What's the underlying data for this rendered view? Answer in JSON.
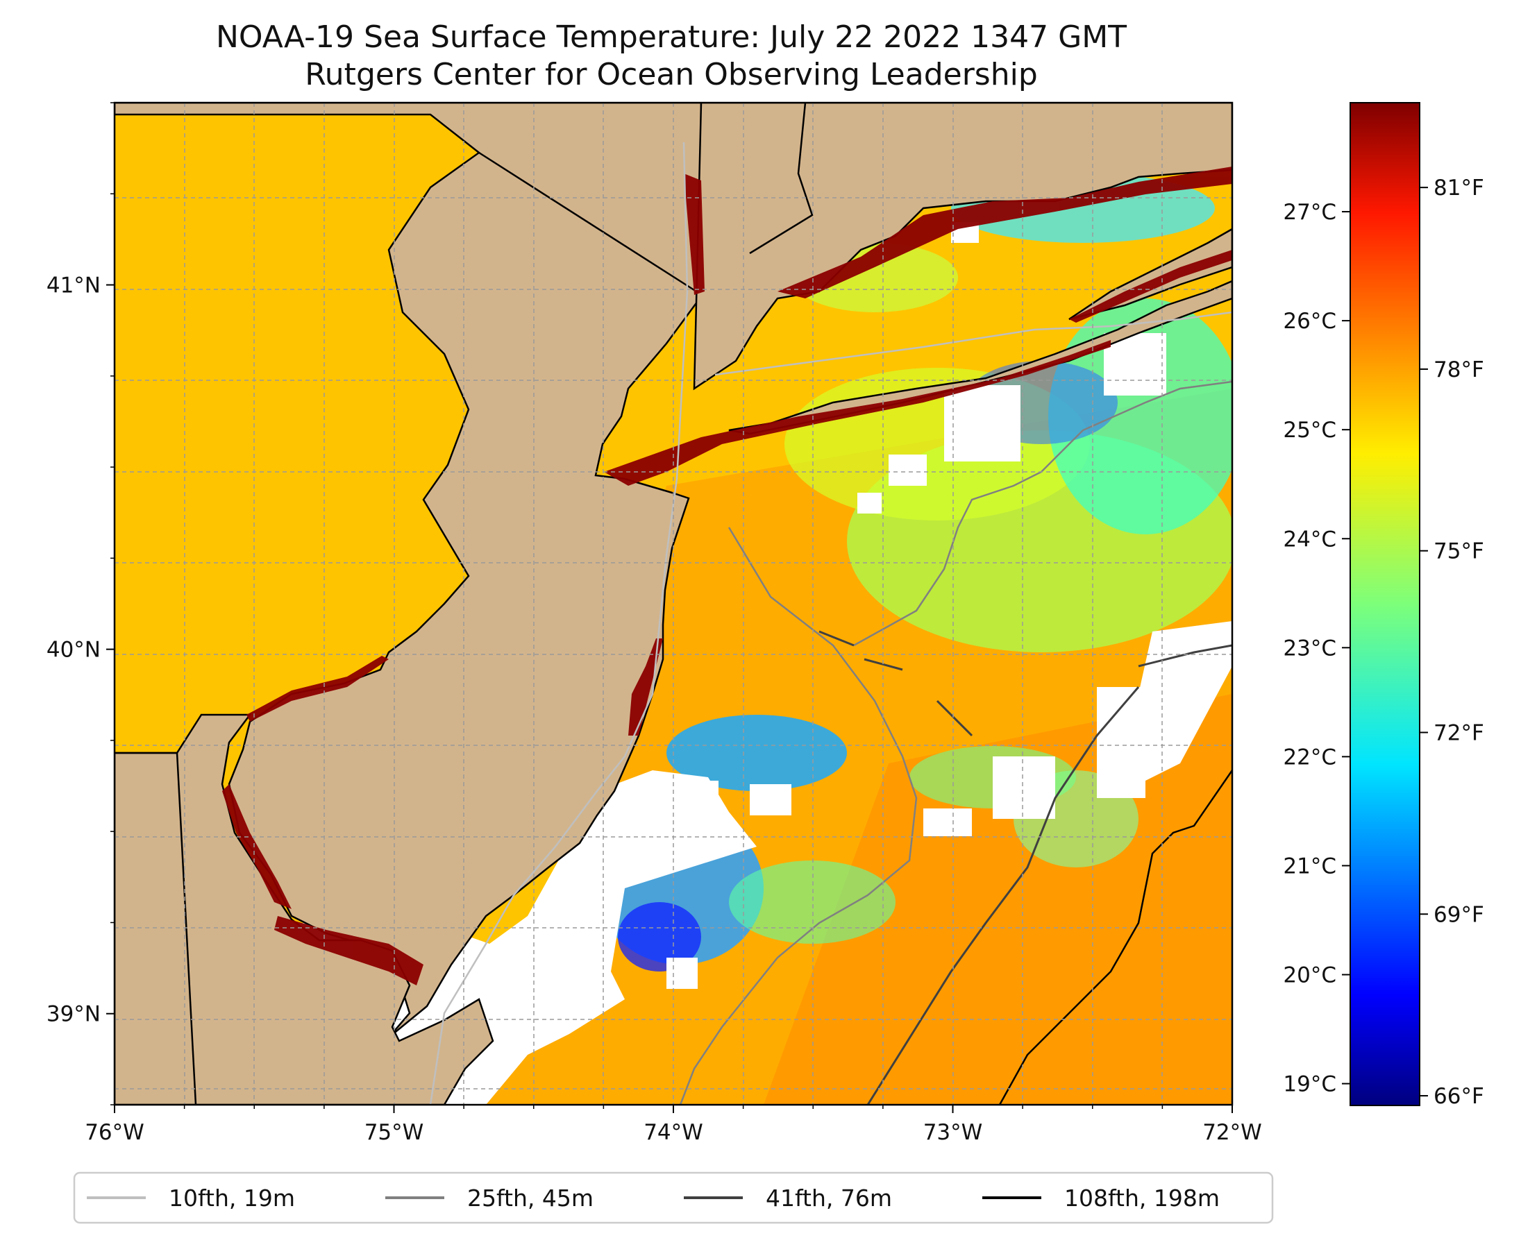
{
  "title": {
    "line1": "NOAA-19 Sea Surface Temperature: July 22 2022 1347 GMT",
    "line2": "Rutgers Center for Ocean Observing Leadership"
  },
  "map": {
    "lon_range": [
      -76,
      -72
    ],
    "lat_range": [
      38.75,
      41.5
    ],
    "land_color": "#d2b48c",
    "no_data_color": "#ffffff",
    "lon_ticks": [
      {
        "value": -76,
        "label": "76°W"
      },
      {
        "value": -75,
        "label": "75°W"
      },
      {
        "value": -74,
        "label": "74°W"
      },
      {
        "value": -73,
        "label": "73°W"
      },
      {
        "value": -72,
        "label": "72°W"
      }
    ],
    "lat_ticks": [
      {
        "value": 39,
        "label": "39°N"
      },
      {
        "value": 40,
        "label": "40°N"
      },
      {
        "value": 41,
        "label": "41°N"
      }
    ],
    "minor_lon_step": 0.25,
    "minor_lat_step": 0.25,
    "grid": true
  },
  "colorbar": {
    "colormap": "jet",
    "range_c": [
      18.8,
      28
    ],
    "celsius_ticks": [
      {
        "value": 19,
        "label": "19°C"
      },
      {
        "value": 20,
        "label": "20°C"
      },
      {
        "value": 21,
        "label": "21°C"
      },
      {
        "value": 22,
        "label": "22°C"
      },
      {
        "value": 23,
        "label": "23°C"
      },
      {
        "value": 24,
        "label": "24°C"
      },
      {
        "value": 25,
        "label": "25°C"
      },
      {
        "value": 26,
        "label": "26°C"
      },
      {
        "value": 27,
        "label": "27°C"
      }
    ],
    "fahrenheit_ticks": [
      {
        "value": 66,
        "label": "66°F"
      },
      {
        "value": 69,
        "label": "69°F"
      },
      {
        "value": 72,
        "label": "72°F"
      },
      {
        "value": 75,
        "label": "75°F"
      },
      {
        "value": 78,
        "label": "78°F"
      },
      {
        "value": 81,
        "label": "81°F"
      }
    ]
  },
  "legend": {
    "placement": "bottom",
    "items": [
      {
        "label": "10fth, 19m",
        "color": "#bfbfbf"
      },
      {
        "label": "25fth, 45m",
        "color": "#808080"
      },
      {
        "label": "41fth, 76m",
        "color": "#404040"
      },
      {
        "label": "108fth, 198m",
        "color": "#000000"
      }
    ]
  }
}
